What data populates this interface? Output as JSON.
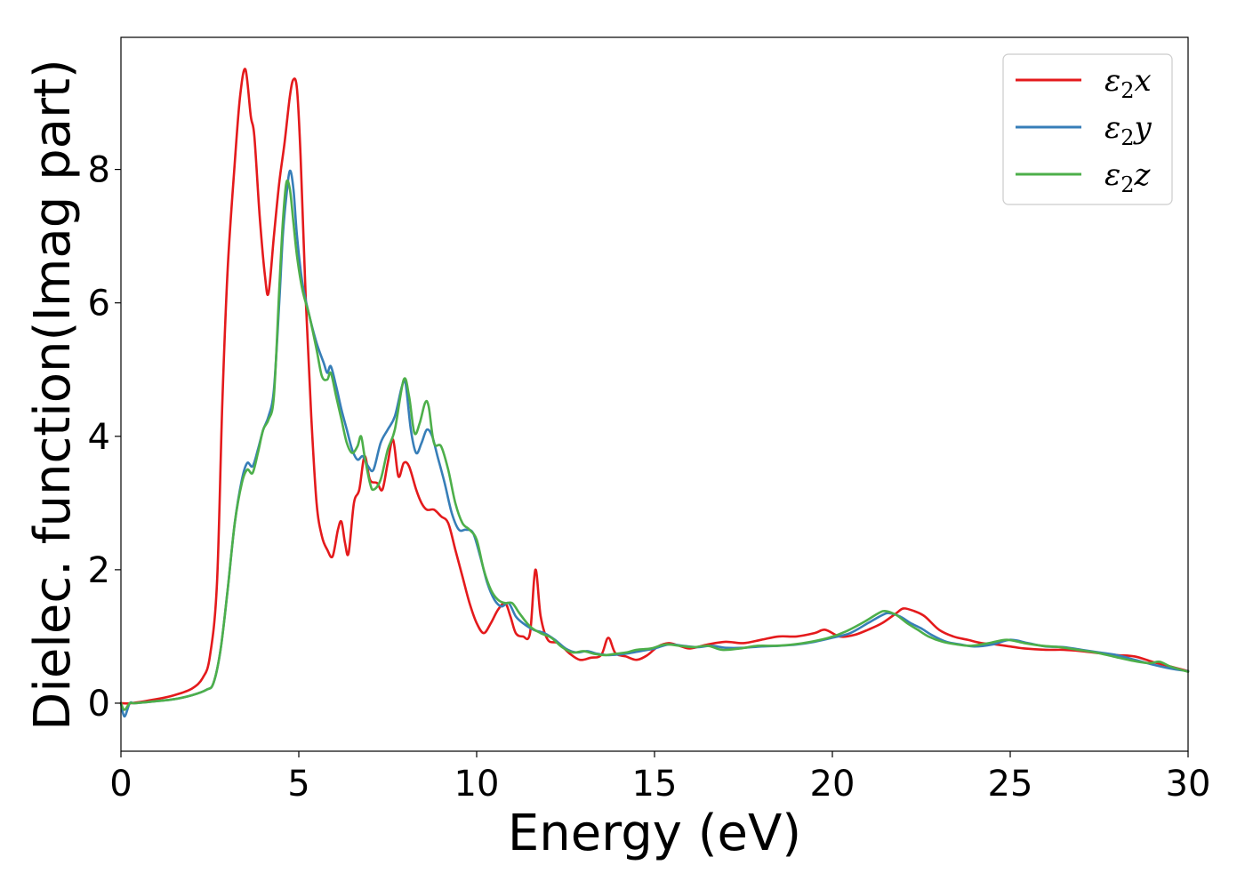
{
  "chart_data": {
    "type": "line",
    "xlabel": "Energy (eV)",
    "ylabel": "Dielec. function(Imag part)",
    "xlim": [
      0,
      30
    ],
    "ylim": [
      -0.72,
      9.98
    ],
    "xticks": [
      0,
      5,
      10,
      15,
      20,
      25,
      30
    ],
    "xtick_labels": [
      "0",
      "5",
      "10",
      "15",
      "20",
      "25",
      "30"
    ],
    "yticks": [
      0,
      2,
      4,
      6,
      8
    ],
    "ytick_labels": [
      "0",
      "2",
      "4",
      "6",
      "8"
    ],
    "grid": false,
    "legend": {
      "placement": "top-right"
    },
    "series": [
      {
        "name": "ε₂x",
        "legend_base": "ε",
        "legend_sub": "2",
        "legend_axis": "x",
        "color": "#e41a1c",
        "x": [
          0,
          0.3,
          1.0,
          1.5,
          2.0,
          2.3,
          2.5,
          2.7,
          2.85,
          3.0,
          3.2,
          3.35,
          3.5,
          3.65,
          3.75,
          3.9,
          4.05,
          4.15,
          4.3,
          4.45,
          4.6,
          4.75,
          4.85,
          4.95,
          5.05,
          5.2,
          5.35,
          5.5,
          5.65,
          5.8,
          5.95,
          6.1,
          6.2,
          6.3,
          6.4,
          6.55,
          6.7,
          6.85,
          7.0,
          7.2,
          7.35,
          7.5,
          7.65,
          7.8,
          7.95,
          8.1,
          8.3,
          8.45,
          8.6,
          8.8,
          9.0,
          9.2,
          9.4,
          9.6,
          9.8,
          10.0,
          10.2,
          10.4,
          10.6,
          10.8,
          10.95,
          11.1,
          11.3,
          11.5,
          11.65,
          11.8,
          12.0,
          12.3,
          12.6,
          12.9,
          13.2,
          13.5,
          13.7,
          13.9,
          14.2,
          14.5,
          14.8,
          15.1,
          15.4,
          15.7,
          16.0,
          16.5,
          17.0,
          17.5,
          18.0,
          18.5,
          19.0,
          19.5,
          19.8,
          20.2,
          20.6,
          21.0,
          21.4,
          21.8,
          22.0,
          22.3,
          22.6,
          23.0,
          23.4,
          23.8,
          24.2,
          24.6,
          25.0,
          25.4,
          26.0,
          26.5,
          27.0,
          27.5,
          28.0,
          28.5,
          29.0,
          29.5,
          30.0
        ],
        "y": [
          0.0,
          0.0,
          0.06,
          0.12,
          0.22,
          0.38,
          0.7,
          1.8,
          4.5,
          6.5,
          8.1,
          9.1,
          9.5,
          8.8,
          8.5,
          7.3,
          6.4,
          6.15,
          7.0,
          7.8,
          8.4,
          9.1,
          9.35,
          9.2,
          8.2,
          6.0,
          4.3,
          3.0,
          2.5,
          2.3,
          2.2,
          2.6,
          2.72,
          2.4,
          2.25,
          3.0,
          3.2,
          3.7,
          3.35,
          3.3,
          3.2,
          3.6,
          3.95,
          3.4,
          3.6,
          3.55,
          3.2,
          3.0,
          2.9,
          2.9,
          2.8,
          2.7,
          2.3,
          1.9,
          1.5,
          1.2,
          1.05,
          1.2,
          1.4,
          1.5,
          1.3,
          1.05,
          1.0,
          1.05,
          2.0,
          1.3,
          0.95,
          0.9,
          0.75,
          0.65,
          0.68,
          0.72,
          0.98,
          0.75,
          0.7,
          0.65,
          0.72,
          0.85,
          0.9,
          0.86,
          0.82,
          0.88,
          0.92,
          0.9,
          0.95,
          1.0,
          1.0,
          1.05,
          1.1,
          1.0,
          1.02,
          1.1,
          1.2,
          1.35,
          1.42,
          1.38,
          1.3,
          1.1,
          1.0,
          0.95,
          0.9,
          0.88,
          0.85,
          0.82,
          0.8,
          0.8,
          0.78,
          0.75,
          0.72,
          0.7,
          0.62,
          0.55,
          0.48
        ]
      },
      {
        "name": "ε₂y",
        "legend_base": "ε",
        "legend_sub": "2",
        "legend_axis": "y",
        "color": "#377eb8",
        "x": [
          0,
          0.1,
          0.25,
          0.4,
          1.0,
          1.5,
          2.0,
          2.4,
          2.6,
          2.8,
          3.0,
          3.2,
          3.4,
          3.55,
          3.7,
          3.85,
          4.0,
          4.15,
          4.3,
          4.45,
          4.55,
          4.65,
          4.75,
          4.85,
          4.95,
          5.1,
          5.3,
          5.5,
          5.7,
          5.8,
          5.9,
          6.05,
          6.2,
          6.35,
          6.5,
          6.65,
          6.8,
          6.95,
          7.1,
          7.3,
          7.5,
          7.7,
          7.9,
          8.0,
          8.15,
          8.3,
          8.45,
          8.6,
          8.75,
          8.9,
          9.1,
          9.3,
          9.5,
          9.7,
          9.9,
          10.1,
          10.3,
          10.5,
          10.7,
          10.9,
          11.1,
          11.3,
          11.6,
          11.9,
          12.2,
          12.5,
          12.8,
          13.1,
          13.4,
          13.7,
          14.0,
          14.3,
          14.6,
          15.0,
          15.4,
          15.8,
          16.2,
          16.6,
          17.0,
          17.5,
          18.0,
          18.5,
          19.0,
          19.5,
          20.0,
          20.5,
          21.0,
          21.4,
          21.6,
          21.9,
          22.2,
          22.5,
          22.8,
          23.2,
          23.6,
          24.0,
          24.5,
          25.0,
          25.5,
          26.0,
          26.5,
          27.0,
          27.5,
          28.0,
          28.5,
          29.0,
          29.5,
          30.0
        ],
        "y": [
          0.0,
          -0.2,
          0.0,
          0.0,
          0.03,
          0.06,
          0.12,
          0.2,
          0.3,
          0.8,
          1.7,
          2.7,
          3.35,
          3.6,
          3.55,
          3.8,
          4.1,
          4.3,
          4.7,
          6.0,
          7.0,
          7.6,
          7.98,
          7.7,
          7.0,
          6.3,
          5.8,
          5.4,
          5.1,
          4.95,
          5.05,
          4.75,
          4.4,
          4.1,
          3.8,
          3.65,
          3.7,
          3.55,
          3.5,
          3.9,
          4.1,
          4.3,
          4.75,
          4.8,
          4.1,
          3.75,
          3.9,
          4.1,
          4.0,
          3.7,
          3.3,
          2.85,
          2.6,
          2.6,
          2.55,
          2.2,
          1.8,
          1.55,
          1.45,
          1.5,
          1.3,
          1.2,
          1.1,
          1.05,
          0.95,
          0.82,
          0.76,
          0.78,
          0.74,
          0.72,
          0.73,
          0.75,
          0.78,
          0.82,
          0.88,
          0.86,
          0.84,
          0.86,
          0.83,
          0.83,
          0.85,
          0.86,
          0.88,
          0.92,
          0.98,
          1.05,
          1.2,
          1.32,
          1.35,
          1.3,
          1.2,
          1.12,
          1.02,
          0.92,
          0.88,
          0.85,
          0.88,
          0.95,
          0.9,
          0.85,
          0.84,
          0.8,
          0.76,
          0.72,
          0.65,
          0.58,
          0.52,
          0.48
        ]
      },
      {
        "name": "ε₂z",
        "legend_base": "ε",
        "legend_sub": "2",
        "legend_axis": "z",
        "color": "#4daf4a",
        "x": [
          0,
          0.1,
          0.25,
          0.4,
          1.0,
          1.5,
          2.0,
          2.4,
          2.6,
          2.8,
          3.0,
          3.2,
          3.4,
          3.55,
          3.7,
          3.85,
          4.0,
          4.15,
          4.3,
          4.45,
          4.55,
          4.65,
          4.75,
          4.85,
          4.95,
          5.1,
          5.3,
          5.5,
          5.65,
          5.8,
          5.9,
          6.05,
          6.2,
          6.35,
          6.5,
          6.65,
          6.75,
          6.85,
          7.0,
          7.1,
          7.3,
          7.5,
          7.7,
          7.95,
          8.1,
          8.25,
          8.4,
          8.55,
          8.65,
          8.8,
          9.0,
          9.2,
          9.4,
          9.6,
          9.8,
          10.0,
          10.2,
          10.4,
          10.6,
          10.8,
          11.0,
          11.2,
          11.5,
          11.8,
          12.1,
          12.4,
          12.7,
          13.0,
          13.3,
          13.6,
          13.9,
          14.2,
          14.5,
          14.9,
          15.3,
          15.7,
          16.1,
          16.5,
          16.9,
          17.4,
          17.9,
          18.4,
          18.9,
          19.4,
          19.9,
          20.4,
          20.9,
          21.3,
          21.5,
          21.8,
          22.1,
          22.4,
          22.7,
          23.1,
          23.5,
          23.9,
          24.4,
          24.9,
          25.4,
          25.9,
          26.4,
          26.9,
          27.4,
          27.9,
          28.4,
          28.9,
          29.2,
          29.5,
          30.0
        ],
        "y": [
          0.0,
          -0.1,
          0.0,
          0.0,
          0.03,
          0.06,
          0.12,
          0.2,
          0.3,
          0.8,
          1.7,
          2.7,
          3.3,
          3.5,
          3.45,
          3.75,
          4.1,
          4.25,
          4.6,
          6.2,
          7.2,
          7.8,
          7.7,
          7.2,
          6.7,
          6.2,
          5.8,
          5.3,
          4.9,
          4.85,
          4.95,
          4.6,
          4.25,
          3.9,
          3.75,
          3.85,
          4.0,
          3.7,
          3.3,
          3.2,
          3.35,
          3.8,
          4.1,
          4.85,
          4.6,
          4.05,
          4.2,
          4.5,
          4.45,
          3.9,
          3.85,
          3.5,
          3.0,
          2.7,
          2.6,
          2.45,
          2.0,
          1.7,
          1.55,
          1.5,
          1.5,
          1.35,
          1.15,
          1.05,
          0.98,
          0.84,
          0.76,
          0.78,
          0.74,
          0.72,
          0.74,
          0.76,
          0.8,
          0.82,
          0.88,
          0.86,
          0.84,
          0.86,
          0.8,
          0.82,
          0.86,
          0.86,
          0.88,
          0.92,
          0.98,
          1.08,
          1.22,
          1.35,
          1.38,
          1.32,
          1.2,
          1.1,
          1.0,
          0.92,
          0.88,
          0.86,
          0.9,
          0.95,
          0.9,
          0.86,
          0.84,
          0.8,
          0.76,
          0.7,
          0.64,
          0.6,
          0.62,
          0.55,
          0.47
        ]
      }
    ]
  }
}
